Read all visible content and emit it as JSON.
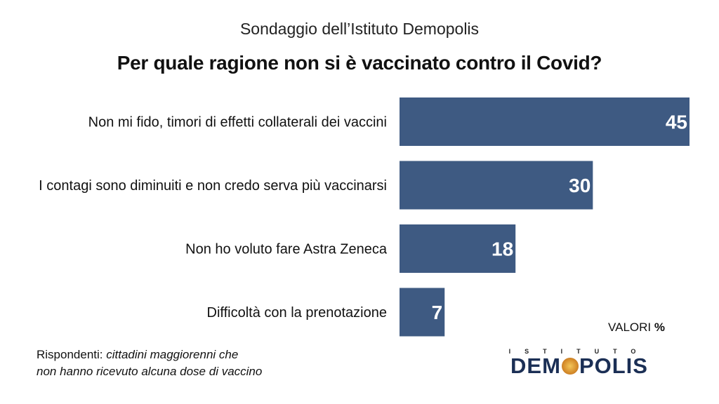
{
  "header": {
    "subtitle": "Sondaggio dell’Istituto Demopolis",
    "title": "Per quale ragione non si è vaccinato contro il Covid?"
  },
  "chart_data": {
    "type": "bar",
    "orientation": "horizontal",
    "categories": [
      "Non mi fido, timori di effetti collaterali dei vaccini",
      "I contagi sono diminuiti e non credo serva più vaccinarsi",
      "Non ho voluto fare Astra Zeneca",
      "Difficoltà con la prenotazione"
    ],
    "values": [
      45,
      30,
      18,
      7
    ],
    "title": "Per quale ragione non si è vaccinato contro il Covid?",
    "subtitle": "Sondaggio dell’Istituto Demopolis",
    "bar_color": "#3e5a82",
    "value_label_color": "#ffffff",
    "grid": false,
    "legend": "none"
  },
  "unit": {
    "prefix": "VALORI",
    "symbol": "%"
  },
  "note": {
    "label": "Rispondenti:",
    "line1": "cittadini maggiorenni che",
    "line2": "non hanno ricevuto alcuna dose di vaccino"
  },
  "logo": {
    "top": "ISTITUTO",
    "main_left": "DEM",
    "main_right": "POLIS"
  }
}
